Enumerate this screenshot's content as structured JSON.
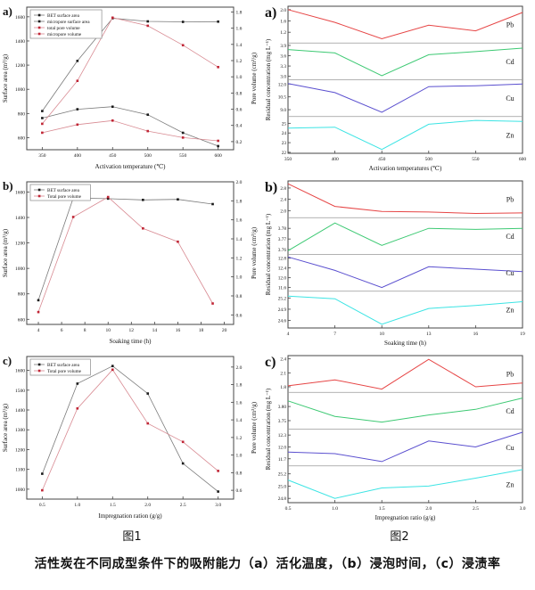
{
  "caption": "活性炭在不同成型条件下的吸附能力（a）活化温度，（b）浸泡时间，（c）浸渍率",
  "figure1_label": "图1",
  "figure2_label": "图2",
  "colors": {
    "black_marker": "#1a1a1a",
    "black_line": "#7a7a7a",
    "red_marker": "#c02535",
    "red_line": "#d88a92",
    "pb": "#e64545",
    "cd": "#3dc973",
    "cu": "#5a4fcf",
    "zn": "#3ce4e4",
    "spine": "#444444",
    "separator": "#999999"
  },
  "chart_data": [
    {
      "id": "fig1a",
      "type": "dual-axis-line",
      "panel_letter": "a)",
      "x_label": "Activation temperature (℃)",
      "x_tick_labels": [
        "350",
        "400",
        "450",
        "500",
        "550",
        "600"
      ],
      "x_tick_values": [
        350,
        400,
        450,
        500,
        550,
        600
      ],
      "x_range": [
        328,
        622
      ],
      "axes": {
        "left": {
          "label": "Surface area (m²/g)",
          "tick_labels": [
            "600",
            "800",
            "1000",
            "1200",
            "1400",
            "1600"
          ],
          "tick_values": [
            600,
            800,
            1000,
            1200,
            1400,
            1600
          ],
          "range": [
            500,
            1680
          ]
        },
        "right": {
          "label": "Pore volume (cm³/g)",
          "tick_labels": [
            "0.2",
            "0.4",
            "0.6",
            "0.8",
            "1.0",
            "1.2",
            "1.4",
            "1.6",
            "1.8"
          ],
          "tick_values": [
            0.2,
            0.4,
            0.6,
            0.8,
            1.0,
            1.2,
            1.4,
            1.6,
            1.8
          ],
          "range": [
            0.1,
            1.86
          ]
        }
      },
      "series": [
        {
          "name": "BET surface area",
          "axis": "left",
          "line_color": "#7a7a7a",
          "marker_color": "#1a1a1a",
          "x": [
            350,
            400,
            450,
            500,
            550,
            600
          ],
          "y": [
            820,
            1235,
            1588,
            1562,
            1558,
            1560
          ]
        },
        {
          "name": "micropore surface area",
          "axis": "left",
          "line_color": "#7a7a7a",
          "marker_color": "#1a1a1a",
          "x": [
            350,
            400,
            450,
            500,
            550,
            600
          ],
          "y": [
            762,
            835,
            856,
            790,
            640,
            530
          ]
        },
        {
          "name": "total pore volume",
          "axis": "right",
          "line_color": "#d88a92",
          "marker_color": "#c02535",
          "x": [
            350,
            400,
            450,
            500,
            550,
            600
          ],
          "y": [
            0.42,
            0.95,
            1.73,
            1.63,
            1.39,
            1.12
          ]
        },
        {
          "name": "micropore volume",
          "axis": "right",
          "line_color": "#d88a92",
          "marker_color": "#c02535",
          "x": [
            350,
            400,
            450,
            500,
            550,
            600
          ],
          "y": [
            0.31,
            0.41,
            0.46,
            0.33,
            0.25,
            0.21
          ]
        }
      ]
    },
    {
      "id": "fig1b",
      "type": "dual-axis-line",
      "panel_letter": "b)",
      "x_label": "Soaking time (h)",
      "x_tick_labels": [
        "4",
        "6",
        "8",
        "10",
        "12",
        "14",
        "16",
        "18",
        "20"
      ],
      "x_tick_values": [
        4,
        6,
        8,
        10,
        12,
        14,
        16,
        18,
        20
      ],
      "x_range": [
        3,
        20.8
      ],
      "axes": {
        "left": {
          "label": "Surface area (m²/g)",
          "tick_labels": [
            "600",
            "800",
            "1000",
            "1200",
            "1400",
            "1600"
          ],
          "tick_values": [
            600,
            800,
            1000,
            1200,
            1400,
            1600
          ],
          "range": [
            560,
            1680
          ]
        },
        "right": {
          "label": "Pore volume (cm³/g)",
          "tick_labels": [
            "0.6",
            "0.8",
            "1.0",
            "1.2",
            "1.4",
            "1.6",
            "1.8",
            "2.0"
          ],
          "tick_values": [
            0.6,
            0.8,
            1.0,
            1.2,
            1.4,
            1.6,
            1.8,
            2.0
          ],
          "range": [
            0.5,
            2.0
          ]
        }
      },
      "series": [
        {
          "name": "BET surface area",
          "axis": "left",
          "line_color": "#7a7a7a",
          "marker_color": "#1a1a1a",
          "x": [
            4,
            7,
            10,
            13,
            16,
            19
          ],
          "y": [
            750,
            1552,
            1548,
            1538,
            1542,
            1505
          ]
        },
        {
          "name": "Total pore volume",
          "axis": "right",
          "line_color": "#d88a92",
          "marker_color": "#c02535",
          "x": [
            4,
            7,
            10,
            13,
            16,
            19
          ],
          "y": [
            0.63,
            1.63,
            1.84,
            1.51,
            1.37,
            0.72
          ]
        }
      ]
    },
    {
      "id": "fig1c",
      "type": "dual-axis-line",
      "panel_letter": "c)",
      "x_label": "Impregnation ration (g/g)",
      "x_tick_labels": [
        "0.5",
        "1.0",
        "1.5",
        "2.0",
        "2.5",
        "3.0"
      ],
      "x_tick_values": [
        0.5,
        1.0,
        1.5,
        2.0,
        2.5,
        3.0
      ],
      "x_range": [
        0.28,
        3.22
      ],
      "axes": {
        "left": {
          "label": "Surface area (m²/g)",
          "tick_labels": [
            "1000",
            "1100",
            "1200",
            "1300",
            "1400",
            "1500",
            "1600"
          ],
          "tick_values": [
            1000,
            1100,
            1200,
            1300,
            1400,
            1500,
            1600
          ],
          "range": [
            950,
            1670
          ]
        },
        "right": {
          "label": "Pore volume (cm³/g)",
          "tick_labels": [
            "0.6",
            "0.8",
            "1.0",
            "1.2",
            "1.4",
            "1.6",
            "1.8",
            "2.0"
          ],
          "tick_values": [
            0.6,
            0.8,
            1.0,
            1.2,
            1.4,
            1.6,
            1.8,
            2.0
          ],
          "range": [
            0.5,
            2.12
          ]
        }
      },
      "series": [
        {
          "name": "BET surface area",
          "axis": "left",
          "line_color": "#7a7a7a",
          "marker_color": "#1a1a1a",
          "x": [
            0.5,
            1.0,
            1.5,
            2.0,
            2.5,
            3.0
          ],
          "y": [
            1078,
            1533,
            1622,
            1483,
            1130,
            988
          ]
        },
        {
          "name": "Total pore volume",
          "axis": "right",
          "line_color": "#d88a92",
          "marker_color": "#c02535",
          "x": [
            0.5,
            1.0,
            1.5,
            2.0,
            2.5,
            3.0
          ],
          "y": [
            0.6,
            1.53,
            1.97,
            1.36,
            1.15,
            0.82
          ]
        }
      ]
    },
    {
      "id": "fig2a",
      "type": "stacked-panels",
      "panel_letter": "a)",
      "x_label": "Activation temperatures (℃)",
      "y_label": "Residual concentration (mg L⁻¹)",
      "x": [
        350,
        400,
        450,
        500,
        550,
        600
      ],
      "x_tick_labels": [
        "350",
        "400",
        "450",
        "500",
        "550",
        "600"
      ],
      "x_tick_values": [
        350,
        400,
        450,
        500,
        550,
        600
      ],
      "x_range": [
        350,
        600
      ],
      "panels": [
        {
          "element": "Pb",
          "color": "#e64545",
          "tick_labels": [
            "2.0",
            "1.6",
            "1.2"
          ],
          "tick_values": [
            2.0,
            1.6,
            1.2
          ],
          "range": [
            0.82,
            2.12
          ],
          "values": [
            2.0,
            1.55,
            0.97,
            1.45,
            1.25,
            1.9
          ]
        },
        {
          "element": "Cd",
          "color": "#3dc973",
          "tick_labels": [
            "3.9",
            "3.6",
            "3.3",
            "3.0"
          ],
          "tick_values": [
            3.9,
            3.6,
            3.3,
            3.0
          ],
          "range": [
            2.9,
            3.97
          ],
          "values": [
            3.78,
            3.68,
            3.02,
            3.63,
            3.72,
            3.82
          ]
        },
        {
          "element": "Cu",
          "color": "#5a4fcf",
          "tick_labels": [
            "12.0",
            "10.5",
            "9.0"
          ],
          "tick_values": [
            12.0,
            10.5,
            9.0
          ],
          "range": [
            8.2,
            12.5
          ],
          "values": [
            12.05,
            11.0,
            8.7,
            11.7,
            11.8,
            12.0
          ]
        },
        {
          "element": "Zn",
          "color": "#3ce4e4",
          "tick_labels": [
            "25",
            "24",
            "23",
            "22"
          ],
          "tick_values": [
            25,
            24,
            23,
            22
          ],
          "range": [
            21.9,
            25.7
          ],
          "values": [
            24.5,
            24.6,
            22.3,
            24.9,
            25.3,
            25.2
          ]
        }
      ]
    },
    {
      "id": "fig2b",
      "type": "stacked-panels",
      "panel_letter": "b)",
      "x_label": "Soaking time (h)",
      "y_label": "Residual concentration (mg L⁻¹)",
      "x": [
        4,
        7,
        10,
        13,
        16,
        19
      ],
      "x_tick_labels": [
        "4",
        "7",
        "10",
        "13",
        "16",
        "19"
      ],
      "x_tick_values": [
        4,
        7,
        10,
        13,
        16,
        19
      ],
      "x_range": [
        4,
        19
      ],
      "panels": [
        {
          "element": "Pb",
          "color": "#e64545",
          "tick_labels": [
            "2.8",
            "2.4",
            "2.0"
          ],
          "tick_values": [
            2.8,
            2.4,
            2.0
          ],
          "range": [
            1.75,
            3.05
          ],
          "values": [
            2.95,
            2.15,
            1.97,
            1.95,
            1.9,
            1.92
          ]
        },
        {
          "element": "Cd",
          "color": "#3dc973",
          "tick_labels": [
            "3.78",
            "3.77",
            "3.76"
          ],
          "tick_values": [
            3.78,
            3.77,
            3.76
          ],
          "range": [
            3.7555,
            3.79
          ],
          "values": [
            3.759,
            3.785,
            3.764,
            3.78,
            3.779,
            3.78
          ]
        },
        {
          "element": "Cu",
          "color": "#5a4fcf",
          "tick_labels": [
            "12.8",
            "12.4",
            "12.0",
            "11.6"
          ],
          "tick_values": [
            12.8,
            12.4,
            12.0,
            11.6
          ],
          "range": [
            11.45,
            12.95
          ],
          "values": [
            12.85,
            12.3,
            11.6,
            12.45,
            12.35,
            12.25
          ]
        },
        {
          "element": "Zn",
          "color": "#3ce4e4",
          "tick_labels": [
            "25.2",
            "24.9",
            "24.6"
          ],
          "tick_values": [
            25.2,
            24.9,
            24.6
          ],
          "range": [
            24.4,
            25.38
          ],
          "values": [
            25.25,
            25.18,
            24.5,
            24.92,
            25.0,
            25.1
          ]
        }
      ]
    },
    {
      "id": "fig2c",
      "type": "stacked-panels",
      "panel_letter": "c)",
      "x_label": "Impregnation ratio (g/g)",
      "y_label": "Residual concentration (mg L⁻¹)",
      "x": [
        0.5,
        1.0,
        1.5,
        2.0,
        2.5,
        3.0
      ],
      "x_tick_labels": [
        "0.5",
        "1.0",
        "1.5",
        "2.0",
        "2.5",
        "3.0"
      ],
      "x_tick_values": [
        0.5,
        1.0,
        1.5,
        2.0,
        2.5,
        3.0
      ],
      "x_range": [
        0.5,
        3.0
      ],
      "panels": [
        {
          "element": "Pb",
          "color": "#e64545",
          "tick_labels": [
            "2.4",
            "2.1",
            "1.8"
          ],
          "tick_values": [
            2.4,
            2.1,
            1.8
          ],
          "range": [
            1.68,
            2.47
          ],
          "values": [
            1.82,
            1.95,
            1.75,
            2.39,
            1.8,
            1.88
          ]
        },
        {
          "element": "Cd",
          "color": "#3dc973",
          "tick_labels": [
            "3.80",
            "3.75"
          ],
          "tick_values": [
            3.8,
            3.75
          ],
          "range": [
            3.72,
            3.85
          ],
          "values": [
            3.82,
            3.765,
            3.745,
            3.77,
            3.79,
            3.83
          ]
        },
        {
          "element": "Cu",
          "color": "#5a4fcf",
          "tick_labels": [
            "12.3",
            "12.0",
            "11.7"
          ],
          "tick_values": [
            12.3,
            12.0,
            11.7
          ],
          "range": [
            11.52,
            12.45
          ],
          "values": [
            11.87,
            11.83,
            11.63,
            12.15,
            12.0,
            12.37
          ]
        },
        {
          "element": "Zn",
          "color": "#3ce4e4",
          "tick_labels": [
            "25.2",
            "25.0",
            "24.8"
          ],
          "tick_values": [
            25.2,
            25.0,
            24.8
          ],
          "range": [
            24.73,
            25.33
          ],
          "values": [
            25.1,
            24.8,
            24.97,
            25.0,
            25.13,
            25.27
          ]
        }
      ]
    }
  ]
}
